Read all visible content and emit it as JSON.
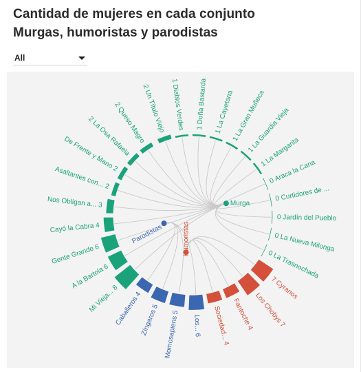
{
  "page": {
    "title": "Cantidad de mujeres en cada conjunto",
    "subtitle": "Murgas, humoristas y parodistas"
  },
  "filter": {
    "selected": "All"
  },
  "chart_data": {
    "type": "radial-bar",
    "max_value": 8,
    "categories": [
      {
        "name": "Murga",
        "color": "#1aa37a"
      },
      {
        "name": "Humoristas",
        "color": "#d4503a"
      },
      {
        "name": "Parodistas",
        "color": "#3b67b0"
      }
    ],
    "items": [
      {
        "name": "Un Título Viejo",
        "value": 2,
        "category": "Murga",
        "label": "2 Un Título Viejo"
      },
      {
        "name": "Diablos Verdes",
        "value": 1,
        "category": "Murga",
        "label": "1 Diablos Verdes"
      },
      {
        "name": "Doña Bastarda",
        "value": 1,
        "category": "Murga",
        "label": "1 Doña Bastarda"
      },
      {
        "name": "La Cayetana",
        "value": 1,
        "category": "Murga",
        "label": "1 La Cayetana"
      },
      {
        "name": "La Gran Muñeca",
        "value": 1,
        "category": "Murga",
        "label": "1 La Gran Muñeca"
      },
      {
        "name": "La Guardia Vieja",
        "value": 1,
        "category": "Murga",
        "label": "1 La Guardia Vieja"
      },
      {
        "name": "La Margarita",
        "value": 1,
        "category": "Murga",
        "label": "1 La Margarita"
      },
      {
        "name": "Araca la Cana",
        "value": 0,
        "category": "Murga",
        "label": "0 Araca la Cana"
      },
      {
        "name": "Curtidores de ...",
        "value": 0,
        "category": "Murga",
        "label": "0 Curtidores de ..."
      },
      {
        "name": "Jardín del Pueblo",
        "value": 0,
        "category": "Murga",
        "label": "0 Jardín del Pueblo"
      },
      {
        "name": "La Nueva Milonga",
        "value": 0,
        "category": "Murga",
        "label": "0 La Nueva Milonga"
      },
      {
        "name": "La Trasnochada",
        "value": 0,
        "category": "Murga",
        "label": "0 La Trasnochada"
      },
      {
        "name": "Cyranos",
        "value": 7,
        "category": "Humoristas",
        "label": "7 Cyranos"
      },
      {
        "name": "Los Chobys",
        "value": 7,
        "category": "Humoristas",
        "label": "Los Chobys 7"
      },
      {
        "name": "Fantoche",
        "value": 4,
        "category": "Humoristas",
        "label": "Fantoche 4"
      },
      {
        "name": "Sociedad...",
        "value": 4,
        "category": "Humoristas",
        "label": "Sociedad... 4"
      },
      {
        "name": "Los...",
        "value": 6,
        "category": "Parodistas",
        "label": "Los... 6"
      },
      {
        "name": "Momosapiens",
        "value": 5,
        "category": "Parodistas",
        "label": "Momosapiens 5"
      },
      {
        "name": "Zíngaros",
        "value": 5,
        "category": "Parodistas",
        "label": "Zíngaros 5"
      },
      {
        "name": "Caballeros",
        "value": 4,
        "category": "Parodistas",
        "label": "Caballeros 4"
      },
      {
        "name": "Mi Vieja...",
        "value": 8,
        "category": "Murga",
        "label": "Mi Vieja... 8"
      },
      {
        "name": "A la Bartola",
        "value": 6,
        "category": "Murga",
        "label": "A la Bartola 6"
      },
      {
        "name": "Gente Grande",
        "value": 6,
        "category": "Murga",
        "label": "Gente Grande 6"
      },
      {
        "name": "Cayó la Cabra",
        "value": 4,
        "category": "Murga",
        "label": "Cayó la Cabra 4"
      },
      {
        "name": "Nos Obligan a...",
        "value": 3,
        "category": "Murga",
        "label": "Nos Obligan a... 3"
      },
      {
        "name": "Asaltantes con...",
        "value": 2,
        "category": "Murga",
        "label": "Asaltantes con... 2"
      },
      {
        "name": "De Frente y Mano",
        "value": 2,
        "category": "Murga",
        "label": "De Frente y Mano 2"
      },
      {
        "name": "La Osa Rafaela",
        "value": 2,
        "category": "Murga",
        "label": "2 La Osa Rafaela"
      },
      {
        "name": "Queso Magro",
        "value": 2,
        "category": "Murga",
        "label": "2 Queso Magro"
      }
    ]
  }
}
